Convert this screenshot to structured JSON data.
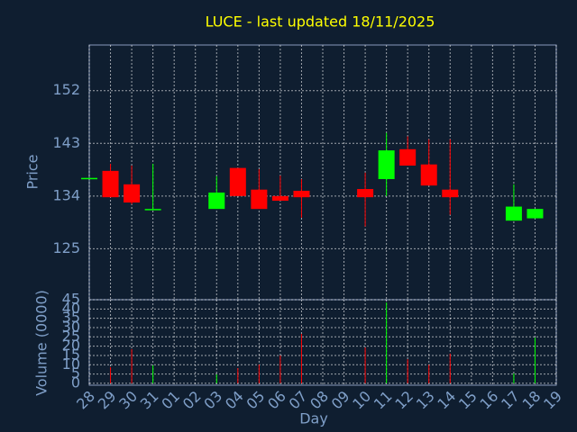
{
  "chart_data": [
    {
      "type": "candlestick",
      "title": "LUCE - last updated 18/11/2025",
      "y_label": "Price",
      "ylim": [
        116.3,
        159.8
      ],
      "yticks": [
        125,
        134,
        143,
        152
      ],
      "grid": true,
      "up_color": "#00ff00",
      "down_color": "#ff0000",
      "open": [
        137.1,
        138.3,
        136.0,
        131.7,
        null,
        null,
        131.8,
        138.8,
        135.1,
        134.0,
        134.9,
        null,
        null,
        135.2,
        136.9,
        142.0,
        139.4,
        135.1,
        null,
        null,
        129.8,
        130.2,
        null
      ],
      "high": [
        137.1,
        139.5,
        139.2,
        139.5,
        null,
        null,
        137.4,
        138.8,
        138.6,
        137.5,
        136.9,
        null,
        null,
        138.0,
        144.8,
        144.2,
        143.7,
        143.7,
        null,
        null,
        136.0,
        131.8,
        null
      ],
      "low": [
        137.1,
        133.8,
        132.6,
        131.7,
        null,
        null,
        131.8,
        134.0,
        131.8,
        133.2,
        130.3,
        null,
        null,
        128.8,
        134.0,
        139.2,
        135.8,
        130.8,
        null,
        null,
        129.8,
        130.2,
        null
      ],
      "close": [
        137.1,
        133.8,
        132.9,
        131.8,
        null,
        null,
        134.6,
        134.0,
        131.8,
        133.2,
        133.8,
        null,
        null,
        133.8,
        141.8,
        139.2,
        135.8,
        133.8,
        null,
        null,
        132.2,
        131.8,
        null
      ]
    },
    {
      "type": "bar",
      "x_label": "Day",
      "y_label": "Volume (0000)",
      "categories": [
        "28",
        "29",
        "30",
        "31",
        "01",
        "02",
        "03",
        "04",
        "05",
        "06",
        "07",
        "08",
        "09",
        "10",
        "11",
        "12",
        "13",
        "14",
        "15",
        "16",
        "17",
        "18",
        "19"
      ],
      "values": [
        null,
        8.7,
        18.4,
        9.7,
        null,
        null,
        4.8,
        8.2,
        10.1,
        15,
        26.6,
        null,
        null,
        19.3,
        43.5,
        13,
        10,
        16,
        null,
        null,
        5.3,
        24.6,
        null
      ],
      "ylim": [
        -1,
        45
      ],
      "yticks": [
        0,
        5,
        10,
        15,
        20,
        25,
        30,
        35,
        40,
        45
      ],
      "grid": true
    }
  ]
}
